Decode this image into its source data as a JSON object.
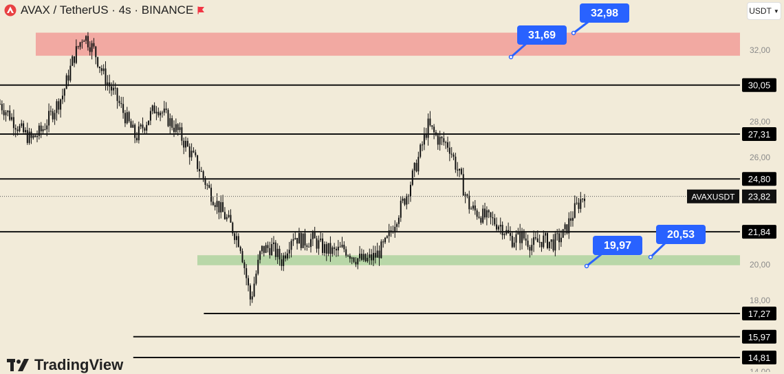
{
  "header": {
    "title": "AVAX / TetherUS · 4s · BINANCE",
    "currency_button": "USDT"
  },
  "watermark": {
    "brand": "TradingView"
  },
  "colors": {
    "background": "#f2ebd9",
    "resistance_zone": "#f2a9a2",
    "support_zone": "#b9d7a8",
    "callout": "#2962ff",
    "price_label_bg": "#000000"
  },
  "chart_data": {
    "type": "candlestick",
    "symbol": "AVAXUSDT",
    "exchange": "BINANCE",
    "timeframe": "4s",
    "ylim": [
      14.0,
      33.2
    ],
    "y_ticks": [
      "32,00",
      "28,00",
      "26,00",
      "20,00",
      "18,00",
      "14,00"
    ],
    "levels": [
      {
        "label": "30,05",
        "x_start_frac": 0.0
      },
      {
        "label": "27,31",
        "x_start_frac": 0.0
      },
      {
        "label": "24,80",
        "x_start_frac": 0.0
      },
      {
        "label": "21,84",
        "x_start_frac": 0.0
      },
      {
        "label": "17,27",
        "x_start_frac": 0.26
      },
      {
        "label": "15,97",
        "x_start_frac": 0.17
      },
      {
        "label": "14,81",
        "x_start_frac": 0.17
      }
    ],
    "current_price": {
      "symbol": "AVAXUSDT",
      "label": "23,82"
    },
    "zones": [
      {
        "name": "resistance",
        "from": 31.69,
        "to": 32.98
      },
      {
        "name": "support",
        "from": 19.97,
        "to": 20.53
      }
    ],
    "callouts": [
      "31,69",
      "32,98",
      "19,97",
      "20,53"
    ],
    "price_path": [
      29.0,
      28.3,
      27.5,
      27.0,
      27.5,
      28.5,
      29.5,
      31.5,
      32.9,
      32.0,
      30.5,
      29.5,
      28.3,
      27.1,
      28.0,
      28.9,
      28.2,
      27.5,
      26.5,
      25.5,
      24.2,
      23.2,
      22.3,
      21.2,
      18.0,
      20.8,
      21.0,
      20.2,
      21.7,
      21.3,
      21.4,
      20.9,
      20.7,
      20.9,
      20.4,
      20.2,
      20.5,
      21.2,
      22.7,
      24.0,
      25.8,
      27.8,
      27.0,
      26.7,
      25.0,
      23.2,
      22.8,
      22.5,
      22.2,
      21.4,
      21.6,
      21.1,
      21.4,
      21.2,
      21.7,
      23.0,
      24.0
    ]
  }
}
